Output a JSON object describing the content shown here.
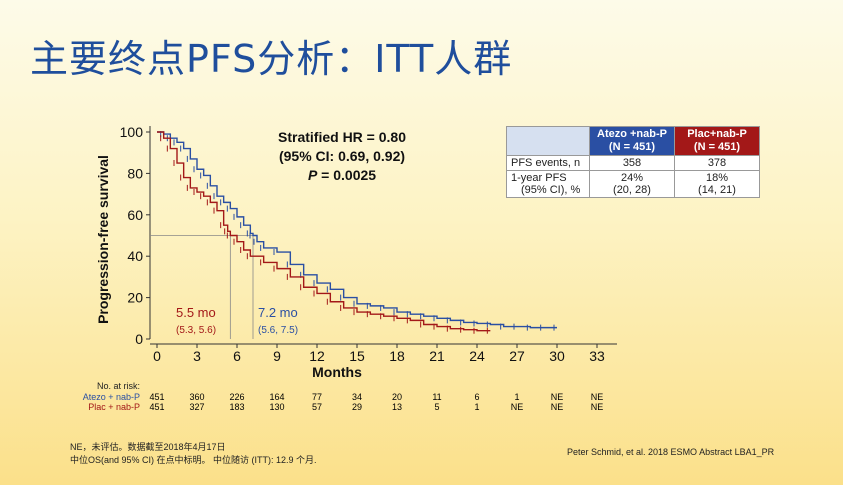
{
  "slide": {
    "title": "主要终点PFS分析：ITT人群",
    "footnote_line1": "NE，未评估。数据截至2018年4月17日",
    "footnote_line2": "中位OS(and 95% CI) 在点中标明。 中位随访 (ITT): 12.9 个月.",
    "citation": "Peter Schmid, et al. 2018 ESMO Abstract LBA1_PR"
  },
  "hr_box": {
    "line1": "Stratified HR = 0.80",
    "line2": "(95% CI: 0.69, 0.92)",
    "p_label": "P",
    "p_value": " = 0.0025"
  },
  "summary_table": {
    "atezo_head_1": "Atezo +nab-P",
    "atezo_head_2": "(N = 451)",
    "plac_head_1": "Plac+nab-P",
    "plac_head_2": "(N = 451)",
    "row1_label": "PFS events, n",
    "row1_atezo": "358",
    "row1_plac": "378",
    "row2_label_1": "1-year PFS",
    "row2_label_2": "(95% CI), %",
    "row2_atezo_1": "24%",
    "row2_atezo_2": "(20, 28)",
    "row2_plac_1": "18%",
    "row2_plac_2": "(14, 21)"
  },
  "risk_table": {
    "header": "No. at risk:",
    "atezo_label": "Atezo + nab-P",
    "plac_label": "Plac + nab-P",
    "atezo_values": [
      "451",
      "360",
      "226",
      "164",
      "77",
      "34",
      "20",
      "11",
      "6",
      "1",
      "NE",
      "NE"
    ],
    "plac_values": [
      "451",
      "327",
      "183",
      "130",
      "57",
      "29",
      "13",
      "5",
      "1",
      "NE",
      "NE",
      "NE"
    ]
  },
  "chart_data": {
    "type": "line",
    "title": "",
    "xlabel": "Months",
    "ylabel": "Progression-free survival",
    "xlim": [
      0,
      33
    ],
    "ylim": [
      0,
      100
    ],
    "x_ticks": [
      0,
      3,
      6,
      9,
      12,
      15,
      18,
      21,
      24,
      27,
      30,
      33
    ],
    "y_ticks": [
      0,
      20,
      40,
      60,
      80,
      100
    ],
    "colors": {
      "atezo": "#2a4fa3",
      "plac": "#a31818",
      "axis": "#333333",
      "median_line": "#888888"
    },
    "series": [
      {
        "name": "Atezo + nab-P",
        "color": "#2a4fa3",
        "x": [
          0,
          0.5,
          1,
          1.5,
          2,
          2.5,
          3,
          3.5,
          4,
          4.5,
          5,
          5.5,
          6,
          6.5,
          7,
          7.2,
          7.5,
          8,
          9,
          10,
          11,
          12,
          13,
          14,
          15,
          16,
          17,
          18,
          19,
          20,
          21,
          22,
          23,
          24,
          25,
          26,
          27,
          28,
          29,
          30
        ],
        "y": [
          100,
          99,
          97,
          95,
          92,
          87,
          82,
          79,
          74,
          69,
          66,
          63,
          59,
          55,
          51,
          50,
          47,
          44,
          42,
          36,
          31,
          27,
          24,
          20,
          17,
          16,
          15,
          13,
          12,
          11,
          10,
          9,
          8,
          7.5,
          7,
          6,
          6,
          5.5,
          5.5,
          5.5
        ]
      },
      {
        "name": "Plac + nab-P",
        "color": "#a31818",
        "x": [
          0,
          0.5,
          1,
          1.5,
          2,
          2.5,
          3,
          3.5,
          4,
          4.5,
          5,
          5.3,
          5.5,
          6,
          6.5,
          7,
          8,
          9,
          10,
          11,
          12,
          13,
          14,
          15,
          16,
          17,
          18,
          19,
          20,
          21,
          22,
          23,
          24,
          25
        ],
        "y": [
          100,
          97,
          92,
          85,
          78,
          73,
          71,
          69,
          66,
          62,
          55,
          52,
          50,
          47,
          43,
          40,
          37,
          34,
          30,
          25,
          22,
          18,
          15,
          13,
          12,
          11,
          10,
          9,
          7,
          6,
          5,
          4.5,
          4,
          4
        ]
      }
    ],
    "medians": [
      {
        "series": "Atezo + nab-P",
        "value": 7.2,
        "label": "7.2 mo",
        "ci": "(5.6, 7.5)"
      },
      {
        "series": "Plac + nab-P",
        "value": 5.5,
        "label": "5.5 mo",
        "ci": "(5.3, 5.6)"
      }
    ]
  }
}
